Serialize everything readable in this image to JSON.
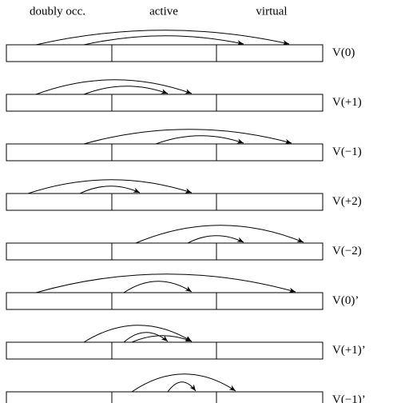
{
  "header": {
    "columns": [
      "doubly occ.",
      "active",
      "virtual"
    ]
  },
  "rows": [
    "V(0)",
    "V(+1)",
    "V(−1)",
    "V(+2)",
    "V(−2)",
    "V(0)’",
    "V(+1)’",
    "V(−1)’"
  ]
}
